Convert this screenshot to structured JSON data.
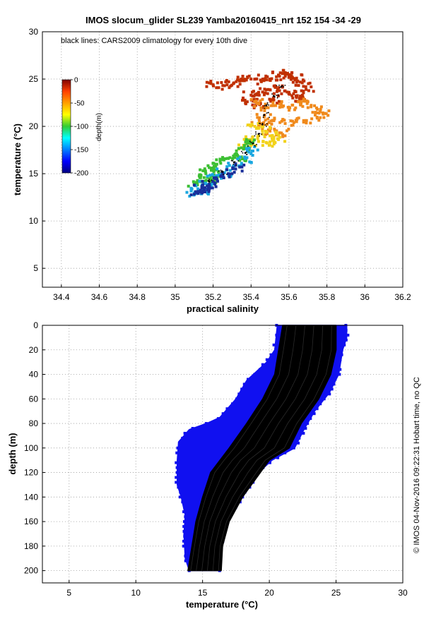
{
  "chart_data": [
    {
      "type": "scatter",
      "title": "IMOS slocum_glider SL239 Yamba20160415_nrt 152  154  -34  -29",
      "xlabel": "practical salinity",
      "ylabel": "temperature (°C)",
      "xlim": [
        34.3,
        36.2
      ],
      "ylim": [
        3,
        30
      ],
      "xticks": [
        34.4,
        34.6,
        34.8,
        35,
        35.2,
        35.4,
        35.6,
        35.8,
        36,
        36.2
      ],
      "xtick_labels": [
        "34.4",
        "34.6",
        "34.8",
        "35",
        "35.2",
        "35.4",
        "35.6",
        "35.8",
        "36",
        "36.2"
      ],
      "yticks": [
        5,
        10,
        15,
        20,
        25,
        30
      ],
      "ytick_labels": [
        "5",
        "10",
        "15",
        "20",
        "25",
        "30"
      ],
      "grid": true,
      "annotation": "black lines: CARS2009 climatology for every 10th dive",
      "colorbar": {
        "label": "depth(m)",
        "range": [
          -200,
          0
        ],
        "ticks": [
          0,
          -50,
          -100,
          -150,
          -200
        ],
        "tick_labels": [
          "0",
          "-50",
          "-100",
          "-150",
          "-200"
        ],
        "colormap": "jet",
        "placement": "inside-top-left"
      },
      "series": [
        {
          "color": "#c03000",
          "points": [
            [
              35.2,
              24.4
            ],
            [
              35.26,
              24.3
            ],
            [
              35.31,
              24.6
            ],
            [
              35.36,
              24.9
            ],
            [
              35.4,
              25.0
            ],
            [
              35.45,
              24.9
            ],
            [
              35.5,
              25.0
            ],
            [
              35.55,
              25.3
            ],
            [
              35.58,
              25.6
            ],
            [
              35.6,
              25.3
            ],
            [
              35.64,
              25.1
            ],
            [
              35.67,
              24.6
            ],
            [
              35.69,
              23.9
            ],
            [
              35.66,
              23.2
            ],
            [
              35.6,
              23.6
            ],
            [
              35.54,
              23.9
            ],
            [
              35.49,
              23.9
            ],
            [
              35.44,
              23.6
            ],
            [
              35.4,
              23.3
            ],
            [
              35.38,
              22.6
            ],
            [
              35.45,
              22.4
            ],
            [
              35.52,
              22.8
            ],
            [
              35.62,
              23.0
            ]
          ]
        },
        {
          "color": "#f08a1c",
          "points": [
            [
              35.44,
              22.5
            ],
            [
              35.48,
              22.0
            ],
            [
              35.53,
              22.2
            ],
            [
              35.6,
              22.0
            ],
            [
              35.66,
              22.3
            ],
            [
              35.7,
              22.6
            ],
            [
              35.75,
              21.8
            ],
            [
              35.78,
              21.3
            ],
            [
              35.72,
              20.8
            ],
            [
              35.64,
              20.5
            ],
            [
              35.58,
              20.3
            ],
            [
              35.52,
              20.6
            ],
            [
              35.47,
              21.0
            ],
            [
              35.44,
              20.1
            ],
            [
              35.5,
              19.5
            ],
            [
              35.56,
              19.3
            ]
          ]
        },
        {
          "color": "#f2d21a",
          "points": [
            [
              35.42,
              20.0
            ],
            [
              35.46,
              19.5
            ],
            [
              35.5,
              19.0
            ],
            [
              35.54,
              18.7
            ],
            [
              35.48,
              18.3
            ],
            [
              35.44,
              18.4
            ],
            [
              35.4,
              18.6
            ],
            [
              35.36,
              18.0
            ]
          ]
        },
        {
          "color": "#3cbf32",
          "points": [
            [
              35.4,
              18.2
            ],
            [
              35.36,
              17.6
            ],
            [
              35.32,
              17.1
            ],
            [
              35.28,
              16.6
            ],
            [
              35.24,
              16.1
            ],
            [
              35.2,
              15.6
            ],
            [
              35.16,
              15.2
            ],
            [
              35.13,
              14.6
            ],
            [
              35.1,
              13.9
            ],
            [
              35.15,
              14.2
            ],
            [
              35.19,
              14.4
            ],
            [
              35.23,
              15.0
            ],
            [
              35.34,
              16.4
            ]
          ]
        },
        {
          "color": "#1aa7e0",
          "points": [
            [
              35.41,
              17.4
            ],
            [
              35.37,
              16.6
            ],
            [
              35.31,
              15.8
            ],
            [
              35.26,
              15.1
            ],
            [
              35.21,
              14.6
            ],
            [
              35.16,
              14.0
            ],
            [
              35.12,
              13.4
            ],
            [
              35.1,
              12.9
            ],
            [
              35.14,
              13.1
            ]
          ]
        },
        {
          "color": "#1a2f9a",
          "points": [
            [
              35.34,
              15.7
            ],
            [
              35.28,
              15.0
            ],
            [
              35.22,
              14.4
            ],
            [
              35.18,
              13.9
            ],
            [
              35.14,
              13.5
            ],
            [
              35.12,
              13.0
            ],
            [
              35.17,
              13.3
            ]
          ]
        }
      ],
      "climatology": {
        "color": "#000000",
        "points": [
          [
            35.56,
            24.2
          ],
          [
            35.52,
            23.2
          ],
          [
            35.48,
            22.2
          ],
          [
            35.47,
            21.2
          ],
          [
            35.46,
            20.2
          ],
          [
            35.44,
            19.2
          ],
          [
            35.41,
            18.2
          ],
          [
            35.37,
            17.2
          ],
          [
            35.31,
            16.2
          ],
          [
            35.25,
            15.2
          ],
          [
            35.18,
            14.2
          ]
        ]
      }
    },
    {
      "type": "line",
      "xlabel": "temperature (°C)",
      "ylabel": "depth (m)",
      "xlim": [
        3,
        30
      ],
      "ylim": [
        210,
        0
      ],
      "xticks": [
        5,
        10,
        15,
        20,
        25,
        30
      ],
      "xtick_labels": [
        "5",
        "10",
        "15",
        "20",
        "25",
        "30"
      ],
      "yticks": [
        0,
        20,
        40,
        60,
        80,
        100,
        120,
        140,
        160,
        180,
        200
      ],
      "ytick_labels": [
        "0",
        "20",
        "40",
        "60",
        "80",
        "100",
        "120",
        "140",
        "160",
        "180",
        "200"
      ],
      "grid": true,
      "series": [
        {
          "color": "#1010f0",
          "left_edge": [
            [
              20.6,
              0
            ],
            [
              20.4,
              20
            ],
            [
              19.8,
              30
            ],
            [
              18.3,
              45
            ],
            [
              17.5,
              60
            ],
            [
              16.3,
              75
            ],
            [
              15.3,
              80
            ],
            [
              14.0,
              85
            ],
            [
              13.2,
              95
            ],
            [
              13.1,
              110
            ],
            [
              13.1,
              130
            ],
            [
              13.4,
              140
            ],
            [
              13.7,
              155
            ],
            [
              13.6,
              170
            ],
            [
              13.7,
              190
            ],
            [
              14.0,
              200
            ]
          ],
          "right_edge": [
            [
              25.8,
              0
            ],
            [
              25.8,
              10
            ],
            [
              25.5,
              20
            ],
            [
              25.2,
              40
            ],
            [
              24.5,
              55
            ],
            [
              23.4,
              70
            ],
            [
              22.6,
              85
            ],
            [
              21.9,
              100
            ],
            [
              20.2,
              110
            ],
            [
              19.2,
              120
            ],
            [
              18.0,
              140
            ],
            [
              16.8,
              160
            ],
            [
              16.4,
              180
            ],
            [
              16.3,
              200
            ]
          ]
        }
      ],
      "climatology": {
        "color": "#000000",
        "left_edge": [
          [
            21.0,
            0
          ],
          [
            20.7,
            20
          ],
          [
            20.4,
            40
          ],
          [
            19.5,
            60
          ],
          [
            18.3,
            80
          ],
          [
            17.0,
            100
          ],
          [
            15.6,
            120
          ],
          [
            15.0,
            140
          ],
          [
            14.5,
            160
          ],
          [
            14.2,
            180
          ],
          [
            13.9,
            200
          ]
        ],
        "right_edge": [
          [
            25.0,
            0
          ],
          [
            25.0,
            20
          ],
          [
            24.6,
            40
          ],
          [
            23.7,
            60
          ],
          [
            22.4,
            80
          ],
          [
            21.5,
            100
          ],
          [
            20.0,
            110
          ],
          [
            19.0,
            125
          ],
          [
            18.0,
            140
          ],
          [
            17.0,
            160
          ],
          [
            16.5,
            180
          ],
          [
            16.4,
            200
          ]
        ]
      }
    }
  ],
  "credit": "© IMOS 04-Nov-2016 09:22:31 Hobart time, no QC"
}
